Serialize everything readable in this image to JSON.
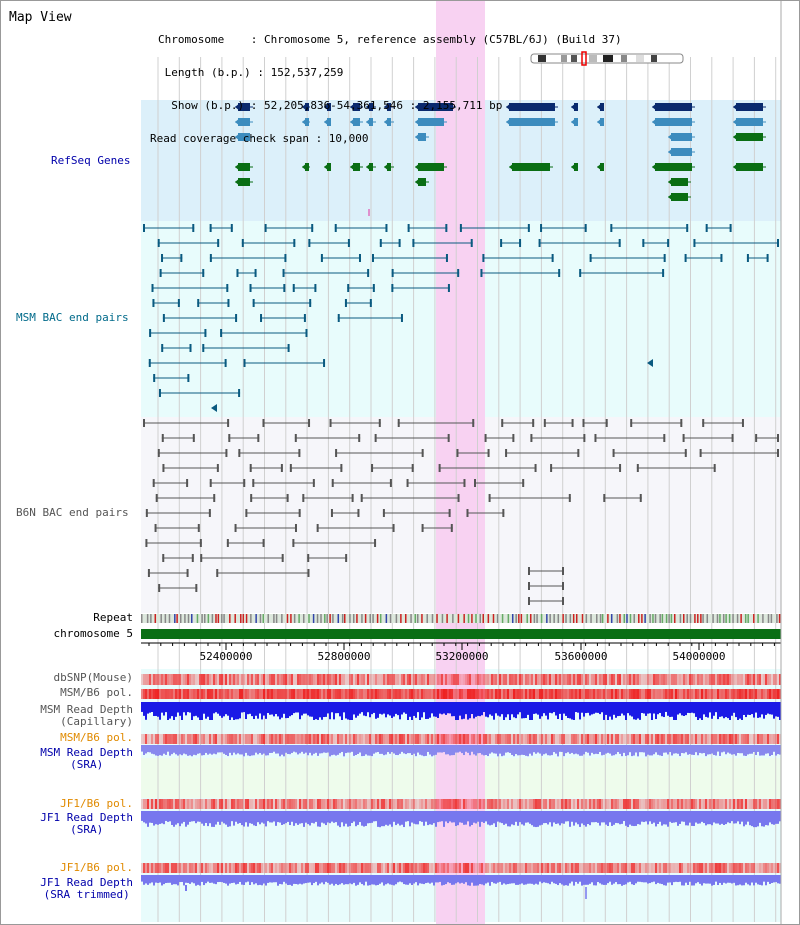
{
  "header": {
    "title": "Map View",
    "chromosome": "Chromosome    : Chromosome 5, reference assembly (C57BL/6J) (Build 37)",
    "length": " Length (b.p.) : 152,537,259",
    "show": "  Show (b.p.) : 52,205,836-54,361,546 : 2,155,711 bp",
    "coverage": "Read coverage check span : 10,000"
  },
  "tracks": {
    "refseq": "RefSeq Genes",
    "msm_bac": "MSM BAC end pairs",
    "b6n_bac": "B6N BAC end pairs",
    "repeat": "Repeat",
    "chromosome": "chromosome 5",
    "dbsnp": "dbSNP(Mouse)",
    "msm_b6_pol_1": "MSM/B6 pol.",
    "msm_cap_1": "MSM Read Depth",
    "msm_cap_2": "(Capillary)",
    "msm_b6_pol_2": "MSM/B6 pol.",
    "msm_sra_1": "MSM Read Depth",
    "msm_sra_2": "(SRA)",
    "jf1_pol_1": "JF1/B6 pol.",
    "jf1_sra_1": "JF1 Read Depth",
    "jf1_sra_2": "(SRA)",
    "jf1_pol_2": "JF1/B6 pol.",
    "jf1_trim_1": "JF1 Read Depth",
    "jf1_trim_2": "(SRA trimmed)"
  },
  "axis": {
    "ticks": [
      "52400000",
      "52800000",
      "53200000",
      "53600000",
      "54000000"
    ]
  },
  "colors": {
    "refseq_dark": "#0a2a6e",
    "refseq_mid": "#3c8cbe",
    "refseq_green": "#0a6e14",
    "msm_bac": "#0a5a80",
    "b6n_bac": "#555555",
    "label_blue": "#0000aa",
    "label_teal": "#006a8a",
    "label_orange": "#e08a00",
    "highlight": "#f8d2f2"
  }
}
